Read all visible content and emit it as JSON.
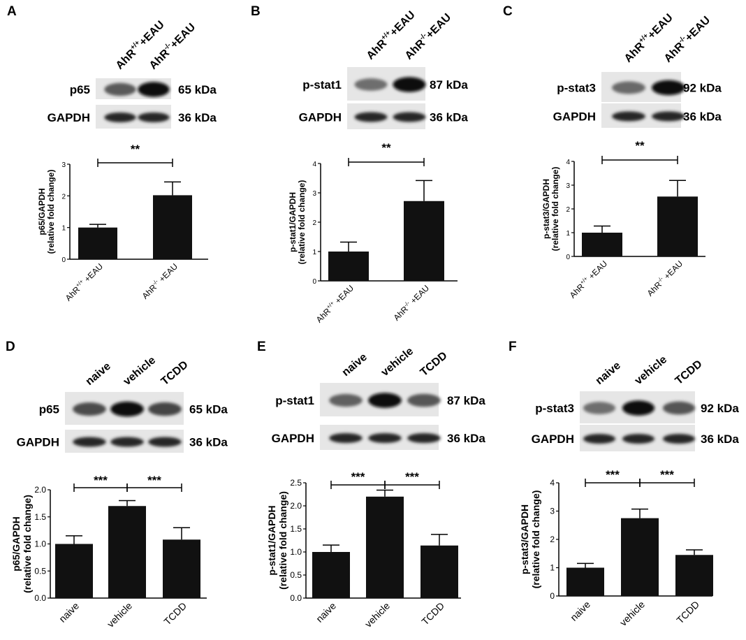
{
  "chart_data": [
    {
      "panel": "A",
      "type": "bar",
      "blot": {
        "lanes": [
          "AhR+/++EAU",
          "AhR-/-+EAU"
        ],
        "rows": [
          {
            "name": "p65",
            "kda": "65 kDa"
          },
          {
            "name": "GAPDH",
            "kda": "36 kDa"
          }
        ]
      },
      "categories": [
        "AhR+/+ +EAU",
        "AhR-/- +EAU"
      ],
      "values": [
        1.0,
        2.02
      ],
      "errors": [
        0.1,
        0.42
      ],
      "ylabel_line1": "p65/GAPDH",
      "ylabel_line2": "(relative fold change)",
      "ylim": [
        0,
        3
      ],
      "yticks": [
        "0",
        "1",
        "2",
        "3"
      ],
      "significance": [
        {
          "from": 0,
          "to": 1,
          "label": "**"
        }
      ]
    },
    {
      "panel": "B",
      "type": "bar",
      "blot": {
        "lanes": [
          "AhR+/++EAU",
          "AhR-/-+EAU"
        ],
        "rows": [
          {
            "name": "p-stat1",
            "kda": "87 kDa"
          },
          {
            "name": "GAPDH",
            "kda": "36 kDa"
          }
        ]
      },
      "categories": [
        "AhR+/+ +EAU",
        "AhR-/- +EAU"
      ],
      "values": [
        1.0,
        2.72
      ],
      "errors": [
        0.32,
        0.7
      ],
      "ylabel_line1": "p-stat1/GAPDH",
      "ylabel_line2": "(relative fold change)",
      "ylim": [
        0,
        4
      ],
      "yticks": [
        "0",
        "1",
        "2",
        "3",
        "4"
      ],
      "significance": [
        {
          "from": 0,
          "to": 1,
          "label": "**"
        }
      ]
    },
    {
      "panel": "C",
      "type": "bar",
      "blot": {
        "lanes": [
          "AhR+/++EAU",
          "AhR-/-+EAU"
        ],
        "rows": [
          {
            "name": "p-stat3",
            "kda": "92 kDa"
          },
          {
            "name": "GAPDH",
            "kda": "36 kDa"
          }
        ]
      },
      "categories": [
        "AhR+/+ +EAU",
        "AhR-/- +EAU"
      ],
      "values": [
        1.0,
        2.52
      ],
      "errors": [
        0.28,
        0.68
      ],
      "ylabel_line1": "p-stat3/GAPDH",
      "ylabel_line2": "(relative fold change)",
      "ylim": [
        0,
        4
      ],
      "yticks": [
        "0",
        "1",
        "2",
        "3",
        "4"
      ],
      "significance": [
        {
          "from": 0,
          "to": 1,
          "label": "**"
        }
      ]
    },
    {
      "panel": "D",
      "type": "bar",
      "blot": {
        "lanes": [
          "naive",
          "vehicle",
          "TCDD"
        ],
        "rows": [
          {
            "name": "p65",
            "kda": "65 kDa"
          },
          {
            "name": "GAPDH",
            "kda": "36 kDa"
          }
        ]
      },
      "categories": [
        "naive",
        "vehicle",
        "TCDD"
      ],
      "values": [
        1.0,
        1.7,
        1.08
      ],
      "errors": [
        0.15,
        0.1,
        0.22
      ],
      "ylabel_line1": "p65/GAPDH",
      "ylabel_line2": "(relative fold change)",
      "ylim": [
        0,
        2.0
      ],
      "yticks": [
        "0.0",
        "0.5",
        "1.0",
        "1.5",
        "2.0"
      ],
      "significance": [
        {
          "from": 0,
          "to": 1,
          "label": "***"
        },
        {
          "from": 1,
          "to": 2,
          "label": "***"
        }
      ]
    },
    {
      "panel": "E",
      "type": "bar",
      "blot": {
        "lanes": [
          "naive",
          "vehicle",
          "TCDD"
        ],
        "rows": [
          {
            "name": "p-stat1",
            "kda": "87 kDa"
          },
          {
            "name": "GAPDH",
            "kda": "36 kDa"
          }
        ]
      },
      "categories": [
        "naive",
        "vehicle",
        "TCDD"
      ],
      "values": [
        1.0,
        2.2,
        1.14
      ],
      "errors": [
        0.15,
        0.14,
        0.24
      ],
      "ylabel_line1": "p-stat1/GAPDH",
      "ylabel_line2": "(relative fold change)",
      "ylim": [
        0,
        2.5
      ],
      "yticks": [
        "0.0",
        "0.5",
        "1.0",
        "1.5",
        "2.0",
        "2.5"
      ],
      "significance": [
        {
          "from": 0,
          "to": 1,
          "label": "***"
        },
        {
          "from": 1,
          "to": 2,
          "label": "***"
        }
      ]
    },
    {
      "panel": "F",
      "type": "bar",
      "blot": {
        "lanes": [
          "naive",
          "vehicle",
          "TCDD"
        ],
        "rows": [
          {
            "name": "p-stat3",
            "kda": "92 kDa"
          },
          {
            "name": "GAPDH",
            "kda": "36 kDa"
          }
        ]
      },
      "categories": [
        "naive",
        "vehicle",
        "TCDD"
      ],
      "values": [
        1.0,
        2.75,
        1.45
      ],
      "errors": [
        0.15,
        0.32,
        0.18
      ],
      "ylabel_line1": "p-stat3/GAPDH",
      "ylabel_line2": "(relative fold change)",
      "ylim": [
        0,
        4
      ],
      "yticks": [
        "0",
        "1",
        "2",
        "3",
        "4"
      ],
      "significance": [
        {
          "from": 0,
          "to": 1,
          "label": "***"
        },
        {
          "from": 1,
          "to": 2,
          "label": "***"
        }
      ]
    }
  ]
}
